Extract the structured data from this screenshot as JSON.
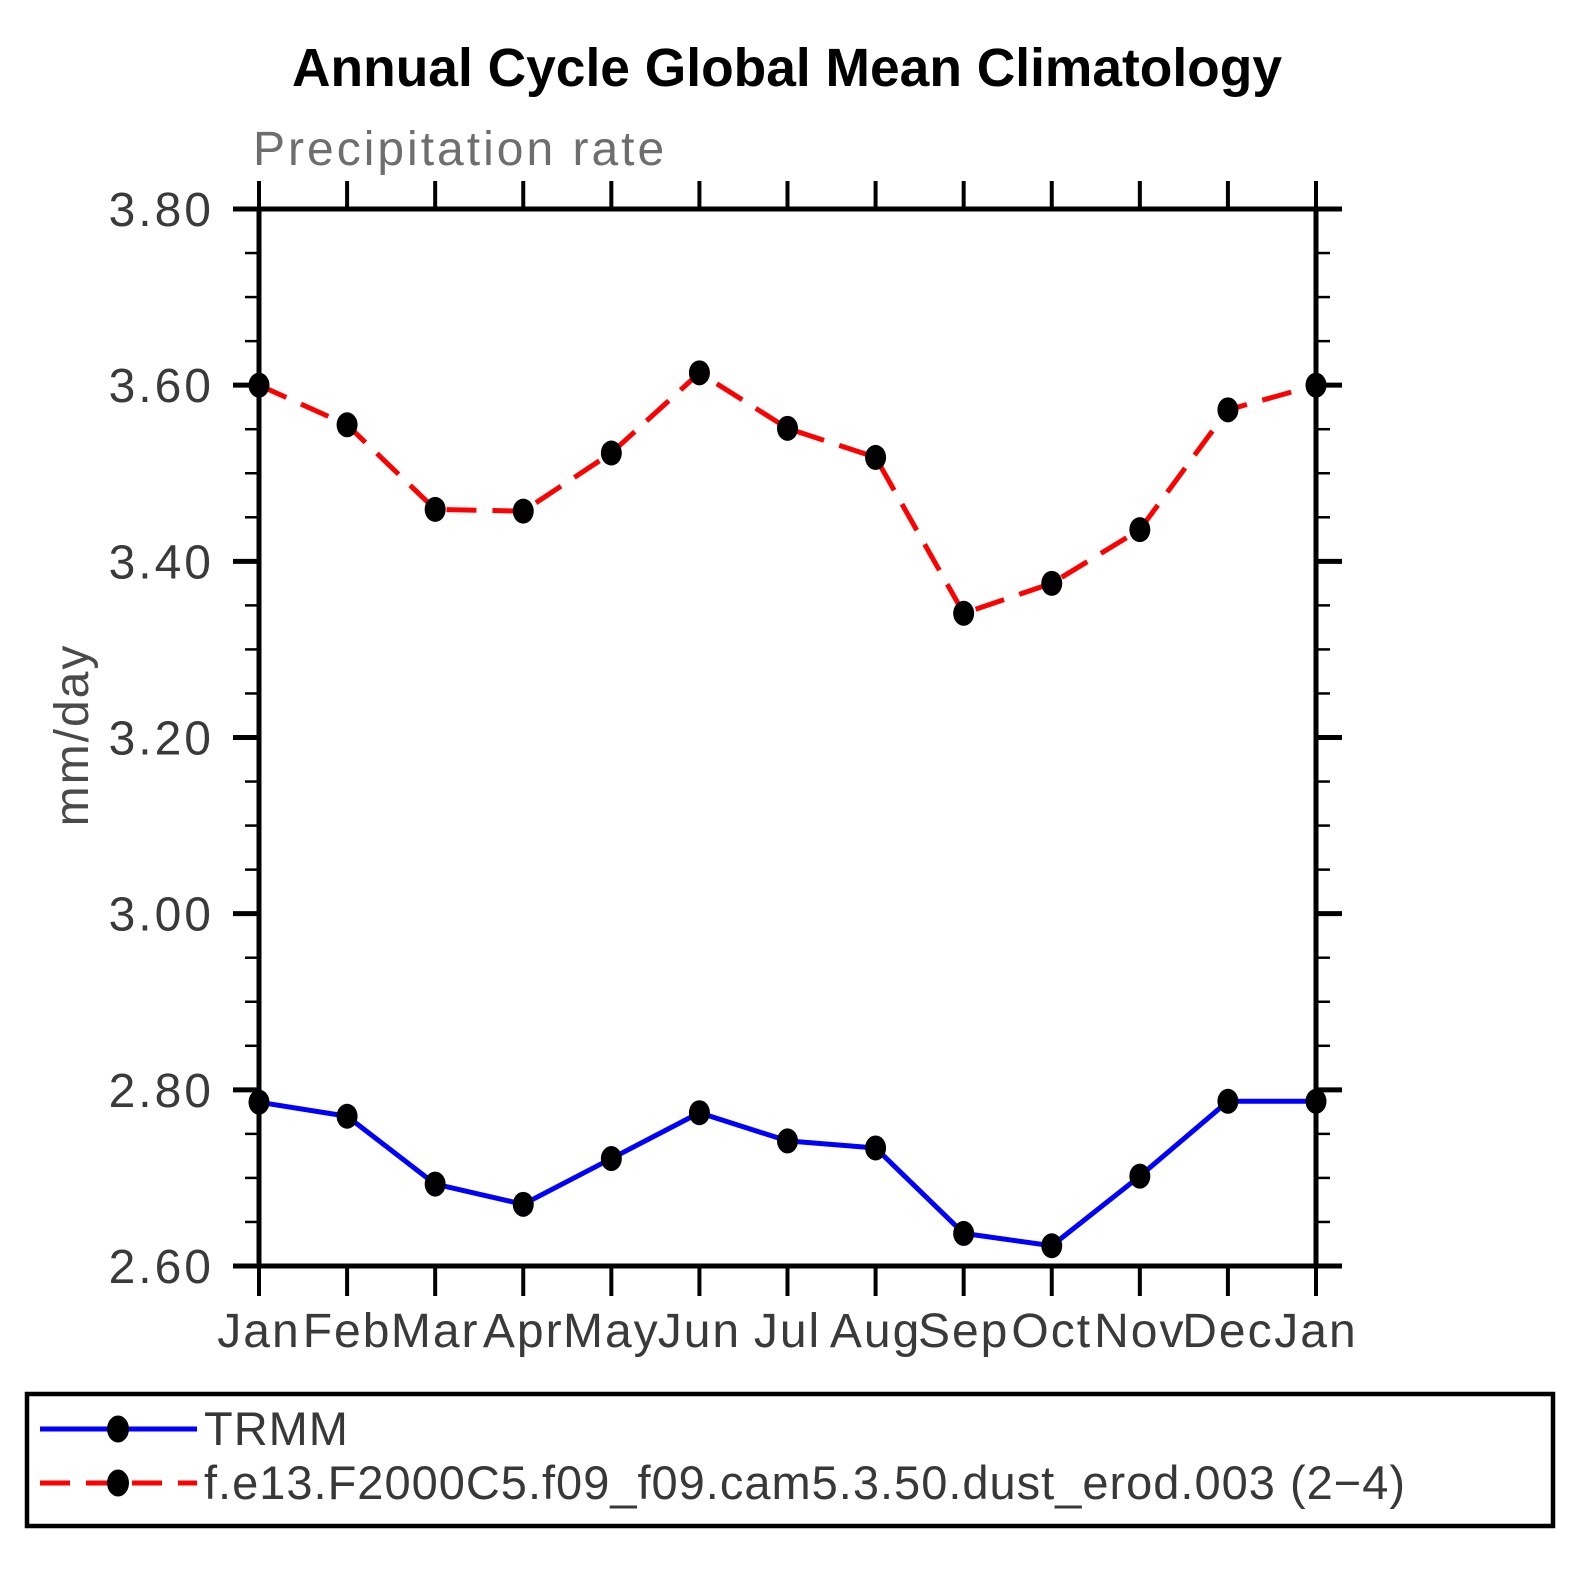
{
  "chart_data": {
    "type": "line",
    "title": "Annual Cycle Global Mean Climatology",
    "subtitle": "Precipitation rate",
    "xlabel": "",
    "ylabel": "mm/day",
    "categories": [
      "Jan",
      "Feb",
      "Mar",
      "Apr",
      "May",
      "Jun",
      "Jul",
      "Aug",
      "Sep",
      "Oct",
      "Nov",
      "Dec",
      "Jan"
    ],
    "ylim": [
      2.6,
      3.8
    ],
    "ytick_step": 0.2,
    "yminor_step": 0.05,
    "ytick_labels": [
      "3.80",
      "3.60",
      "3.40",
      "3.20",
      "3.00",
      "2.80",
      "2.60"
    ],
    "grid": false,
    "legend_position": "bottom-box",
    "frame_color": "#000000",
    "series": [
      {
        "name": "TRMM",
        "color": "#0000ff",
        "line_style": "solid",
        "marker": "filled-circle",
        "marker_color": "#000000",
        "values": [
          2.786,
          2.77,
          2.693,
          2.67,
          2.722,
          2.774,
          2.742,
          2.734,
          2.637,
          2.623,
          2.702,
          2.787,
          2.787
        ]
      },
      {
        "name": "f.e13.F2000C5.f09_f09.cam5.3.50.dust_erod.003 (2−4)",
        "color": "#ff0000",
        "line_style": "dashed",
        "marker": "filled-circle",
        "marker_color": "#000000",
        "values": [
          3.6,
          3.555,
          3.459,
          3.457,
          3.523,
          3.614,
          3.551,
          3.518,
          3.341,
          3.375,
          3.436,
          3.572,
          3.6
        ]
      }
    ]
  },
  "legend": {
    "entries": [
      {
        "label": "TRMM"
      },
      {
        "label": "f.e13.F2000C5.f09_f09.cam5.3.50.dust_erod.003 (2−4)"
      }
    ]
  }
}
